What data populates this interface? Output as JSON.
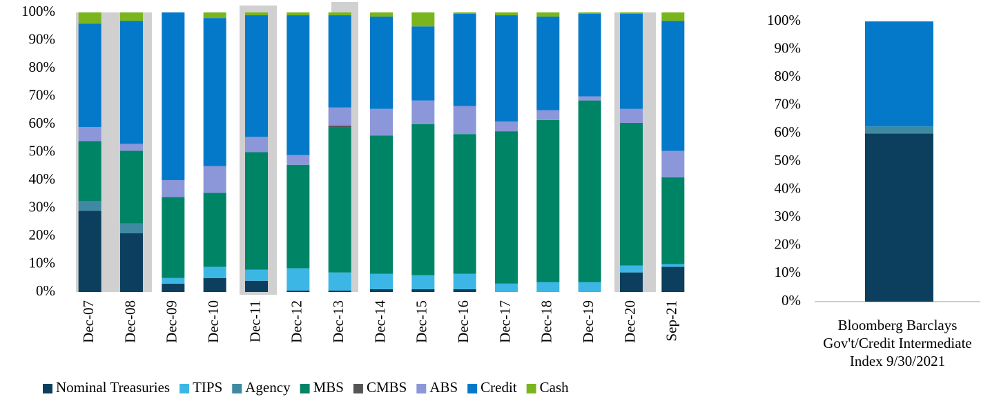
{
  "chart_data": [
    {
      "type": "stacked_bar",
      "categories": [
        "Dec-07",
        "Dec-08",
        "Dec-09",
        "Dec-10",
        "Dec-11",
        "Dec-12",
        "Dec-13",
        "Dec-14",
        "Dec-15",
        "Dec-16",
        "Dec-17",
        "Dec-18",
        "Dec-19",
        "Dec-20",
        "Sep-21"
      ],
      "series": [
        {
          "name": "Nominal Treasuries",
          "color": "#0c3f5e",
          "values": [
            29,
            21,
            3,
            5,
            4,
            0.5,
            0.5,
            1,
            1,
            1,
            0,
            0,
            0,
            7,
            9
          ]
        },
        {
          "name": "TIPS",
          "color": "#3cb7e5",
          "values": [
            0,
            0,
            2,
            4,
            4,
            8,
            6.5,
            5.5,
            5,
            5.5,
            3,
            3.5,
            3.5,
            2.5,
            1
          ]
        },
        {
          "name": "Agency",
          "color": "#3f8aa2",
          "values": [
            3.5,
            3.5,
            0,
            0,
            0,
            0,
            0,
            0,
            0,
            0,
            0,
            0,
            0,
            0,
            0
          ]
        },
        {
          "name": "MBS",
          "color": "#008466",
          "values": [
            21.5,
            26,
            29,
            26.5,
            42,
            37,
            52,
            49.5,
            54,
            50,
            54.5,
            58,
            65,
            51,
            31
          ]
        },
        {
          "name": "CMBS",
          "color": "#555555",
          "values": [
            0,
            0,
            0,
            0,
            0,
            0,
            0.5,
            0,
            0,
            0,
            0,
            0,
            0,
            0,
            0
          ]
        },
        {
          "name": "ABS",
          "color": "#8c97da",
          "values": [
            5,
            2.5,
            6,
            9.5,
            5.5,
            3.5,
            6.5,
            9.5,
            8.5,
            10,
            3.5,
            3.5,
            1.5,
            5,
            9.5
          ]
        },
        {
          "name": "Credit",
          "color": "#0579c9",
          "values": [
            37,
            44,
            60,
            53,
            43.5,
            50,
            33,
            33,
            26.5,
            33,
            38,
            33.5,
            29.5,
            34,
            46.5
          ]
        },
        {
          "name": "Cash",
          "color": "#7ab51d",
          "values": [
            4,
            3,
            0,
            2,
            1,
            1,
            1,
            1.5,
            5,
            0.5,
            1,
            1.5,
            0.5,
            0.5,
            3
          ]
        }
      ],
      "ylim": [
        0,
        100
      ],
      "yticks": [
        {
          "value": 0,
          "label": "0%"
        },
        {
          "value": 10,
          "label": "10%"
        },
        {
          "value": 20,
          "label": "20%"
        },
        {
          "value": 30,
          "label": "30%"
        },
        {
          "value": 40,
          "label": "40%"
        },
        {
          "value": 50,
          "label": "50%"
        },
        {
          "value": 60,
          "label": "60%"
        },
        {
          "value": 70,
          "label": "70%"
        },
        {
          "value": 80,
          "label": "80%"
        },
        {
          "value": 90,
          "label": "90%"
        },
        {
          "value": 100,
          "label": "100%"
        }
      ],
      "legend": "bottom"
    },
    {
      "type": "stacked_bar",
      "categories": [
        "Bloomberg Barclays Gov't/Credit Intermediate Index 9/30/2021"
      ],
      "series": [
        {
          "name": "Nominal Treasuries",
          "color": "#0c3f5e",
          "values": [
            60
          ]
        },
        {
          "name": "Agency",
          "color": "#3f8aa2",
          "values": [
            2.5
          ]
        },
        {
          "name": "Credit",
          "color": "#0579c9",
          "values": [
            37.5
          ]
        }
      ],
      "ylim": [
        0,
        100
      ],
      "yticks": [
        {
          "value": 0,
          "label": "0%"
        },
        {
          "value": 10,
          "label": "10%"
        },
        {
          "value": 20,
          "label": "20%"
        },
        {
          "value": 30,
          "label": "30%"
        },
        {
          "value": 40,
          "label": "40%"
        },
        {
          "value": 50,
          "label": "50%"
        },
        {
          "value": 60,
          "label": "60%"
        },
        {
          "value": 70,
          "label": "70%"
        },
        {
          "value": 80,
          "label": "80%"
        },
        {
          "value": 90,
          "label": "90%"
        },
        {
          "value": 100,
          "label": "100%"
        }
      ]
    }
  ]
}
